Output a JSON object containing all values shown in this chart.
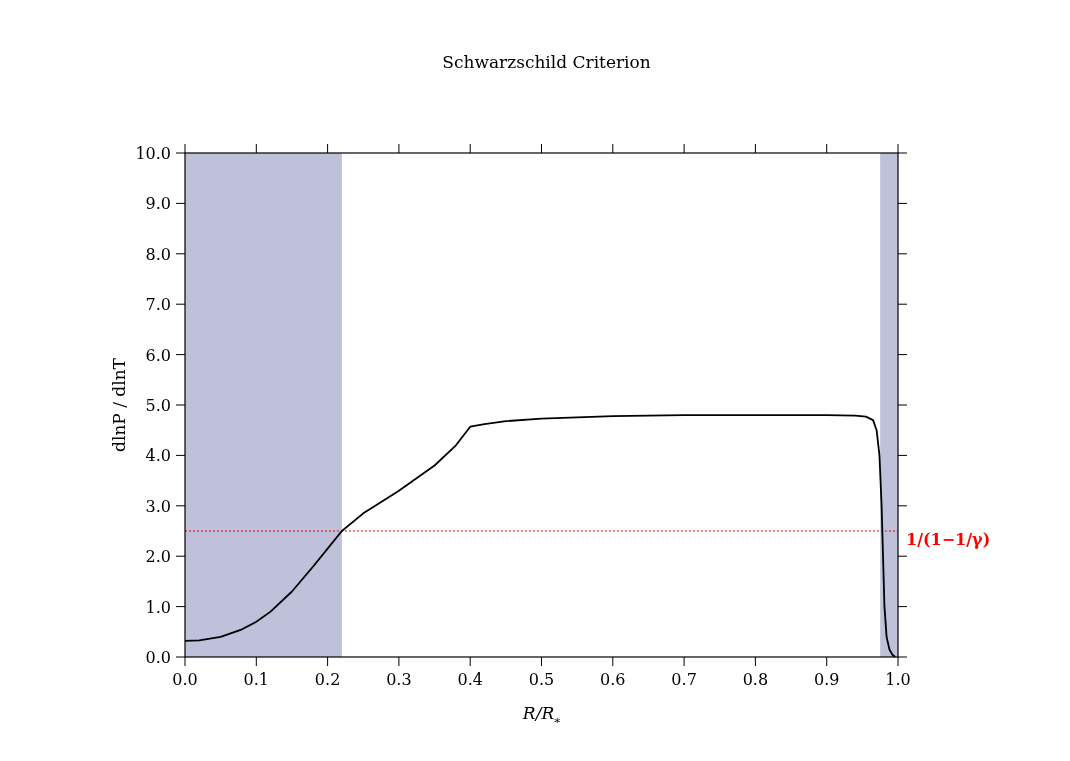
{
  "chart_data": {
    "type": "line",
    "title": "Schwarzschild Criterion",
    "xlabel": "R/R$_{*}$",
    "ylabel": "dlnP / dlnT",
    "series": [
      {
        "color": "#000000",
        "x": [
          0,
          0.02,
          0.05,
          0.08,
          0.1,
          0.12,
          0.15,
          0.18,
          0.2,
          0.22,
          0.25,
          0.3,
          0.35,
          0.38,
          0.4,
          0.42,
          0.45,
          0.5,
          0.6,
          0.7,
          0.8,
          0.9,
          0.94,
          0.955,
          0.965,
          0.97,
          0.974,
          0.977,
          0.979,
          0.981,
          0.984,
          0.988,
          0.992,
          0.996
        ],
        "values": [
          0.32,
          0.33,
          0.4,
          0.55,
          0.7,
          0.9,
          1.3,
          1.8,
          2.15,
          2.5,
          2.85,
          3.3,
          3.8,
          4.2,
          4.57,
          4.62,
          4.68,
          4.73,
          4.78,
          4.8,
          4.8,
          4.8,
          4.79,
          4.77,
          4.7,
          4.5,
          4.0,
          3.0,
          2.0,
          1.0,
          0.4,
          0.15,
          0.05,
          0.0
        ]
      }
    ],
    "xlim": [
      0,
      1
    ],
    "ylim": [
      0,
      10
    ],
    "xticks": [
      {
        "value": 0,
        "label": "0.0"
      },
      {
        "value": 0.1,
        "label": "0.1"
      },
      {
        "value": 0.2,
        "label": "0.2"
      },
      {
        "value": 0.3,
        "label": "0.3"
      },
      {
        "value": 0.4,
        "label": "0.4"
      },
      {
        "value": 0.5,
        "label": "0.5"
      },
      {
        "value": 0.6,
        "label": "0.6"
      },
      {
        "value": 0.7,
        "label": "0.7"
      },
      {
        "value": 0.8,
        "label": "0.8"
      },
      {
        "value": 0.9,
        "label": "0.9"
      },
      {
        "value": 1,
        "label": "1.0"
      }
    ],
    "yticks": [
      {
        "value": 0,
        "label": "0.0"
      },
      {
        "value": 1,
        "label": "1.0"
      },
      {
        "value": 2,
        "label": "2.0"
      },
      {
        "value": 3,
        "label": "3.0"
      },
      {
        "value": 4,
        "label": "4.0"
      },
      {
        "value": 5,
        "label": "5.0"
      },
      {
        "value": 6,
        "label": "6.0"
      },
      {
        "value": 7,
        "label": "7.0"
      },
      {
        "value": 8,
        "label": "8.0"
      },
      {
        "value": 9,
        "label": "9.0"
      },
      {
        "value": 10,
        "label": "10.0"
      }
    ],
    "bands": [
      {
        "axis": "x",
        "from": 0,
        "to": 0.22,
        "color": "#bfc0d9"
      },
      {
        "axis": "x",
        "from": 0.975,
        "to": 1,
        "color": "#bfc0d9"
      }
    ],
    "ref_lines": [
      {
        "axis": "y",
        "value": 2.5,
        "label": "1/(1−1/γ)",
        "color": "#ff0000",
        "line_style": "dotted"
      }
    ],
    "grid": false,
    "marker": "none",
    "line_style": "solid"
  }
}
